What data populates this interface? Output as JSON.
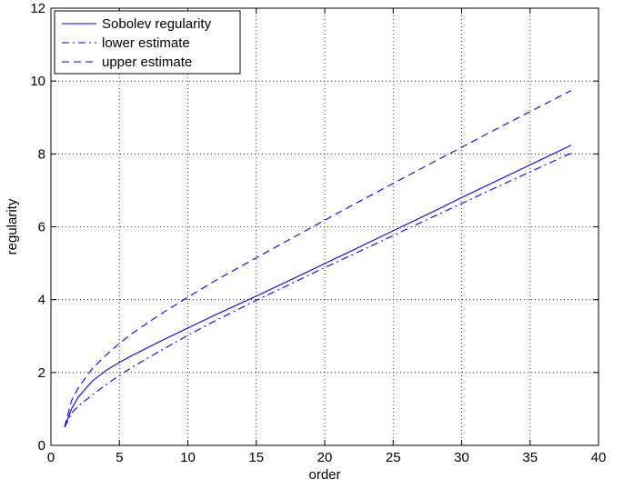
{
  "chart_data": {
    "type": "line",
    "title": "",
    "xlabel": "order",
    "ylabel": "regularity",
    "xlim": [
      0,
      40
    ],
    "ylim": [
      0,
      12
    ],
    "xticks": [
      0,
      5,
      10,
      15,
      20,
      25,
      30,
      35,
      40
    ],
    "yticks": [
      0,
      2,
      4,
      6,
      8,
      10,
      12
    ],
    "xtick_labels": [
      "0",
      "5",
      "10",
      "15",
      "20",
      "25",
      "30",
      "35",
      "40"
    ],
    "ytick_labels": [
      "0",
      "2",
      "4",
      "6",
      "8",
      "10",
      "12"
    ],
    "grid": true,
    "legend_position": "top-left",
    "color": "#0000ff",
    "x": [
      1,
      1.5,
      2,
      3,
      4,
      5,
      6,
      8,
      10,
      12,
      15,
      18,
      20,
      22,
      25,
      28,
      30,
      32,
      35,
      38
    ],
    "series": [
      {
        "name": "Sobolev regularity",
        "style": "solid",
        "values": [
          0.5,
          1.0,
          1.33,
          1.76,
          2.05,
          2.28,
          2.48,
          2.86,
          3.22,
          3.58,
          4.1,
          4.63,
          4.99,
          5.35,
          5.89,
          6.43,
          6.8,
          7.16,
          7.7,
          8.24
        ]
      },
      {
        "name": "lower estimate",
        "style": "dash-dot",
        "values": [
          0.5,
          0.88,
          1.08,
          1.38,
          1.66,
          1.92,
          2.16,
          2.6,
          3.02,
          3.42,
          3.98,
          4.52,
          4.88,
          5.23,
          5.76,
          6.29,
          6.64,
          6.99,
          7.51,
          8.02
        ]
      },
      {
        "name": "upper estimate",
        "style": "dashed",
        "values": [
          0.5,
          1.23,
          1.58,
          2.1,
          2.47,
          2.8,
          3.09,
          3.6,
          4.07,
          4.52,
          5.15,
          5.77,
          6.18,
          6.59,
          7.19,
          7.79,
          8.18,
          8.58,
          9.16,
          9.74
        ]
      }
    ]
  }
}
